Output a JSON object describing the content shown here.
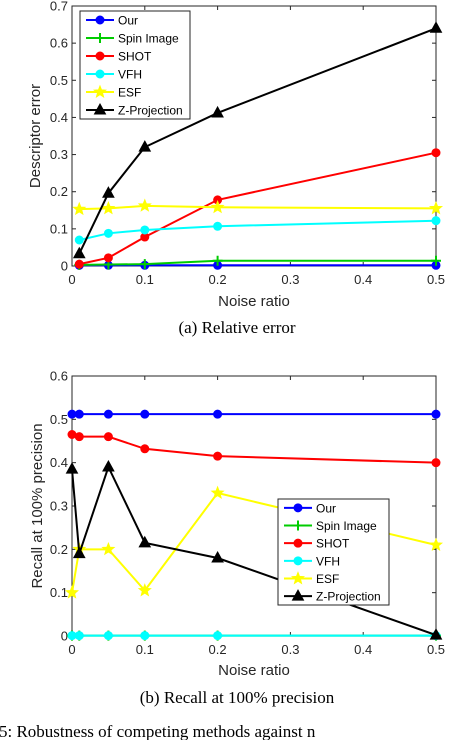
{
  "chart_data": [
    {
      "type": "line",
      "caption": "(a) Relative error",
      "xlabel": "Noise ratio",
      "ylabel": "Descriptor error",
      "xlim": [
        0,
        0.5
      ],
      "ylim": [
        0,
        0.7
      ],
      "xticks": [
        0,
        0.1,
        0.2,
        0.3,
        0.4,
        0.5
      ],
      "xtick_labels": [
        "0",
        "0.1",
        "0.2",
        "0.3",
        "0.4",
        "0.5"
      ],
      "yticks": [
        0,
        0.1,
        0.2,
        0.3,
        0.4,
        0.5,
        0.6,
        0.7
      ],
      "ytick_labels": [
        "0",
        "0.1",
        "0.2",
        "0.3",
        "0.4",
        "0.5",
        "0.6",
        "0.7"
      ],
      "grid": false,
      "legend_position": "top-left",
      "x": [
        0.01,
        0.05,
        0.1,
        0.2,
        0.5
      ],
      "series": [
        {
          "name": "Our",
          "color": "#0000ff",
          "marker": "circle",
          "values": [
            0.002,
            0.002,
            0.002,
            0.002,
            0.002
          ]
        },
        {
          "name": "Spin Image",
          "color": "#00cc00",
          "marker": "plus",
          "values": [
            0.003,
            0.004,
            0.005,
            0.014,
            0.014
          ]
        },
        {
          "name": "SHOT",
          "color": "#ff0000",
          "marker": "circle",
          "values": [
            0.005,
            0.022,
            0.078,
            0.178,
            0.305
          ]
        },
        {
          "name": "VFH",
          "color": "#00ffff",
          "marker": "circle",
          "values": [
            0.07,
            0.088,
            0.097,
            0.107,
            0.122
          ]
        },
        {
          "name": "ESF",
          "color": "#ffff00",
          "marker": "star",
          "values": [
            0.153,
            0.155,
            0.162,
            0.158,
            0.155
          ]
        },
        {
          "name": "Z-Projection",
          "color": "#000000",
          "marker": "triangle",
          "values": [
            0.033,
            0.196,
            0.32,
            0.412,
            0.64
          ]
        }
      ]
    },
    {
      "type": "line",
      "caption": "(b) Recall at 100% precision",
      "xlabel": "Noise ratio",
      "ylabel": "Recall at 100% precision",
      "xlim": [
        0,
        0.5
      ],
      "ylim": [
        0,
        0.6
      ],
      "xticks": [
        0,
        0.1,
        0.2,
        0.3,
        0.4,
        0.5
      ],
      "xtick_labels": [
        "0",
        "0.1",
        "0.2",
        "0.3",
        "0.4",
        "0.5"
      ],
      "yticks": [
        0,
        0.1,
        0.2,
        0.3,
        0.4,
        0.5,
        0.6
      ],
      "ytick_labels": [
        "0",
        "0.1",
        "0.2",
        "0.3",
        "0.4",
        "0.5",
        "0.6"
      ],
      "grid": false,
      "legend_position": "bottom-right",
      "x": [
        0,
        0.01,
        0.05,
        0.1,
        0.2,
        0.5
      ],
      "series": [
        {
          "name": "Our",
          "color": "#0000ff",
          "marker": "circle",
          "values": [
            0.512,
            0.512,
            0.512,
            0.512,
            0.512,
            0.512
          ]
        },
        {
          "name": "Spin Image",
          "color": "#00cc00",
          "marker": "plus",
          "values": [
            0.001,
            0.001,
            0.001,
            0.001,
            0.001,
            0.001
          ]
        },
        {
          "name": "SHOT",
          "color": "#ff0000",
          "marker": "circle",
          "values": [
            0.465,
            0.46,
            0.46,
            0.432,
            0.415,
            0.4
          ]
        },
        {
          "name": "VFH",
          "color": "#00ffff",
          "marker": "circle",
          "values": [
            0.001,
            0.001,
            0.001,
            0.001,
            0.001,
            0.001
          ]
        },
        {
          "name": "ESF",
          "color": "#ffff00",
          "marker": "star",
          "values": [
            0.1,
            0.2,
            0.2,
            0.105,
            0.33,
            0.21
          ]
        },
        {
          "name": "Z-Projection",
          "color": "#000000",
          "marker": "triangle",
          "values": [
            0.385,
            0.19,
            0.39,
            0.215,
            0.18,
            0.002
          ]
        }
      ]
    }
  ],
  "footer_text": "5: Robustness of competing methods against n"
}
